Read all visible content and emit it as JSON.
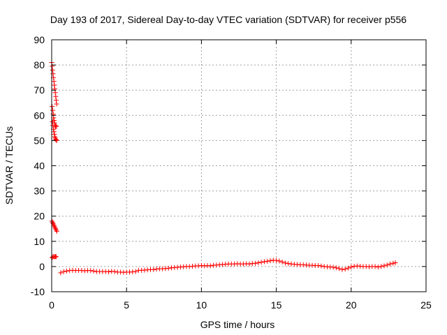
{
  "chart_data": {
    "type": "scatter",
    "title": "Day 193 of 2017, Sidereal Day-to-day VTEC variation (SDTVAR) for receiver p556",
    "xlabel": "GPS time / hours",
    "ylabel": "SDTVAR / TECUs",
    "xlim": [
      0,
      25
    ],
    "ylim": [
      -10,
      90
    ],
    "xticks": [
      0,
      5,
      10,
      15,
      20,
      25
    ],
    "xtick_labels": [
      "0",
      "5",
      "10",
      "15",
      "20",
      "25"
    ],
    "yticks": [
      -10,
      0,
      10,
      20,
      30,
      40,
      50,
      60,
      70,
      80,
      90
    ],
    "ytick_labels": [
      "-10",
      "0",
      "10",
      "20",
      "30",
      "40",
      "50",
      "60",
      "70",
      "80",
      "90"
    ],
    "grid": true,
    "marker": "plus",
    "color": "#ff0000",
    "series": [
      {
        "name": "SDTVAR",
        "points": [
          [
            0.0,
            81.0
          ],
          [
            0.03,
            79.5
          ],
          [
            0.06,
            78.0
          ],
          [
            0.09,
            76.5
          ],
          [
            0.12,
            75.0
          ],
          [
            0.15,
            73.5
          ],
          [
            0.18,
            72.0
          ],
          [
            0.21,
            70.5
          ],
          [
            0.24,
            69.0
          ],
          [
            0.27,
            67.5
          ],
          [
            0.3,
            66.0
          ],
          [
            0.33,
            64.5
          ],
          [
            0.03,
            63.5
          ],
          [
            0.07,
            62.0
          ],
          [
            0.1,
            60.5
          ],
          [
            0.13,
            59.0
          ],
          [
            0.16,
            58.0
          ],
          [
            0.19,
            57.0
          ],
          [
            0.22,
            56.0
          ],
          [
            0.25,
            55.5
          ],
          [
            0.28,
            56.0
          ],
          [
            0.31,
            55.5
          ],
          [
            0.05,
            57.5
          ],
          [
            0.08,
            56.0
          ],
          [
            0.12,
            54.5
          ],
          [
            0.15,
            53.5
          ],
          [
            0.18,
            52.5
          ],
          [
            0.21,
            51.5
          ],
          [
            0.24,
            51.0
          ],
          [
            0.27,
            50.5
          ],
          [
            0.3,
            50.2
          ],
          [
            0.33,
            50.0
          ],
          [
            0.02,
            18.0
          ],
          [
            0.06,
            17.5
          ],
          [
            0.1,
            17.0
          ],
          [
            0.14,
            16.5
          ],
          [
            0.18,
            16.0
          ],
          [
            0.22,
            15.5
          ],
          [
            0.26,
            15.0
          ],
          [
            0.3,
            14.5
          ],
          [
            0.34,
            14.0
          ],
          [
            0.02,
            3.5
          ],
          [
            0.08,
            3.8
          ],
          [
            0.14,
            4.0
          ],
          [
            0.2,
            3.8
          ],
          [
            0.26,
            4.0
          ],
          [
            0.3,
            3.9
          ],
          [
            0.6,
            -2.5
          ],
          [
            0.8,
            -2.0
          ],
          [
            1.0,
            -1.8
          ],
          [
            1.2,
            -1.6
          ],
          [
            1.4,
            -1.5
          ],
          [
            1.6,
            -1.6
          ],
          [
            1.8,
            -1.5
          ],
          [
            2.0,
            -1.6
          ],
          [
            2.2,
            -1.7
          ],
          [
            2.4,
            -1.6
          ],
          [
            2.6,
            -1.6
          ],
          [
            2.8,
            -1.8
          ],
          [
            3.0,
            -2.0
          ],
          [
            3.2,
            -2.0
          ],
          [
            3.4,
            -2.0
          ],
          [
            3.6,
            -2.0
          ],
          [
            3.8,
            -2.1
          ],
          [
            4.0,
            -1.9
          ],
          [
            4.2,
            -2.0
          ],
          [
            4.4,
            -2.2
          ],
          [
            4.6,
            -2.2
          ],
          [
            4.8,
            -2.3
          ],
          [
            5.0,
            -2.2
          ],
          [
            5.2,
            -2.2
          ],
          [
            5.4,
            -2.1
          ],
          [
            5.6,
            -2.0
          ],
          [
            5.8,
            -1.5
          ],
          [
            6.0,
            -1.5
          ],
          [
            6.2,
            -1.4
          ],
          [
            6.4,
            -1.3
          ],
          [
            6.6,
            -1.2
          ],
          [
            6.8,
            -1.2
          ],
          [
            7.0,
            -1.0
          ],
          [
            7.2,
            -0.9
          ],
          [
            7.4,
            -0.9
          ],
          [
            7.6,
            -0.8
          ],
          [
            7.8,
            -0.7
          ],
          [
            8.0,
            -0.5
          ],
          [
            8.2,
            -0.4
          ],
          [
            8.4,
            -0.3
          ],
          [
            8.6,
            -0.2
          ],
          [
            8.8,
            -0.1
          ],
          [
            9.0,
            0.0
          ],
          [
            9.2,
            0.0
          ],
          [
            9.4,
            0.1
          ],
          [
            9.6,
            0.2
          ],
          [
            9.8,
            0.3
          ],
          [
            10.0,
            0.4
          ],
          [
            10.2,
            0.3
          ],
          [
            10.4,
            0.4
          ],
          [
            10.6,
            0.3
          ],
          [
            10.8,
            0.5
          ],
          [
            11.0,
            0.6
          ],
          [
            11.2,
            0.7
          ],
          [
            11.4,
            0.8
          ],
          [
            11.6,
            0.9
          ],
          [
            11.8,
            1.0
          ],
          [
            12.0,
            1.0
          ],
          [
            12.2,
            1.0
          ],
          [
            12.4,
            1.1
          ],
          [
            12.6,
            1.0
          ],
          [
            12.8,
            1.0
          ],
          [
            13.0,
            1.1
          ],
          [
            13.2,
            1.0
          ],
          [
            13.4,
            1.2
          ],
          [
            13.6,
            1.3
          ],
          [
            13.8,
            1.5
          ],
          [
            14.0,
            1.7
          ],
          [
            14.2,
            1.9
          ],
          [
            14.4,
            2.1
          ],
          [
            14.6,
            2.3
          ],
          [
            14.8,
            2.5
          ],
          [
            15.0,
            2.4
          ],
          [
            15.2,
            2.2
          ],
          [
            15.4,
            1.8
          ],
          [
            15.6,
            1.4
          ],
          [
            15.8,
            1.2
          ],
          [
            16.0,
            1.0
          ],
          [
            16.2,
            0.9
          ],
          [
            16.4,
            0.8
          ],
          [
            16.6,
            0.7
          ],
          [
            16.8,
            0.7
          ],
          [
            17.0,
            0.6
          ],
          [
            17.2,
            0.5
          ],
          [
            17.4,
            0.5
          ],
          [
            17.6,
            0.4
          ],
          [
            17.8,
            0.4
          ],
          [
            18.0,
            0.2
          ],
          [
            18.2,
            0.0
          ],
          [
            18.4,
            -0.1
          ],
          [
            18.6,
            -0.2
          ],
          [
            18.8,
            -0.3
          ],
          [
            19.0,
            -0.5
          ],
          [
            19.2,
            -0.8
          ],
          [
            19.4,
            -1.2
          ],
          [
            19.6,
            -1.0
          ],
          [
            19.8,
            -0.6
          ],
          [
            20.0,
            -0.2
          ],
          [
            20.2,
            0.1
          ],
          [
            20.4,
            0.2
          ],
          [
            20.6,
            0.1
          ],
          [
            20.8,
            0.0
          ],
          [
            21.0,
            0.0
          ],
          [
            21.2,
            -0.1
          ],
          [
            21.4,
            0.0
          ],
          [
            21.6,
            0.0
          ],
          [
            21.8,
            -0.2
          ],
          [
            22.0,
            0.0
          ],
          [
            22.2,
            0.3
          ],
          [
            22.4,
            0.6
          ],
          [
            22.6,
            1.0
          ],
          [
            22.8,
            1.3
          ],
          [
            22.95,
            1.5
          ]
        ]
      }
    ]
  }
}
